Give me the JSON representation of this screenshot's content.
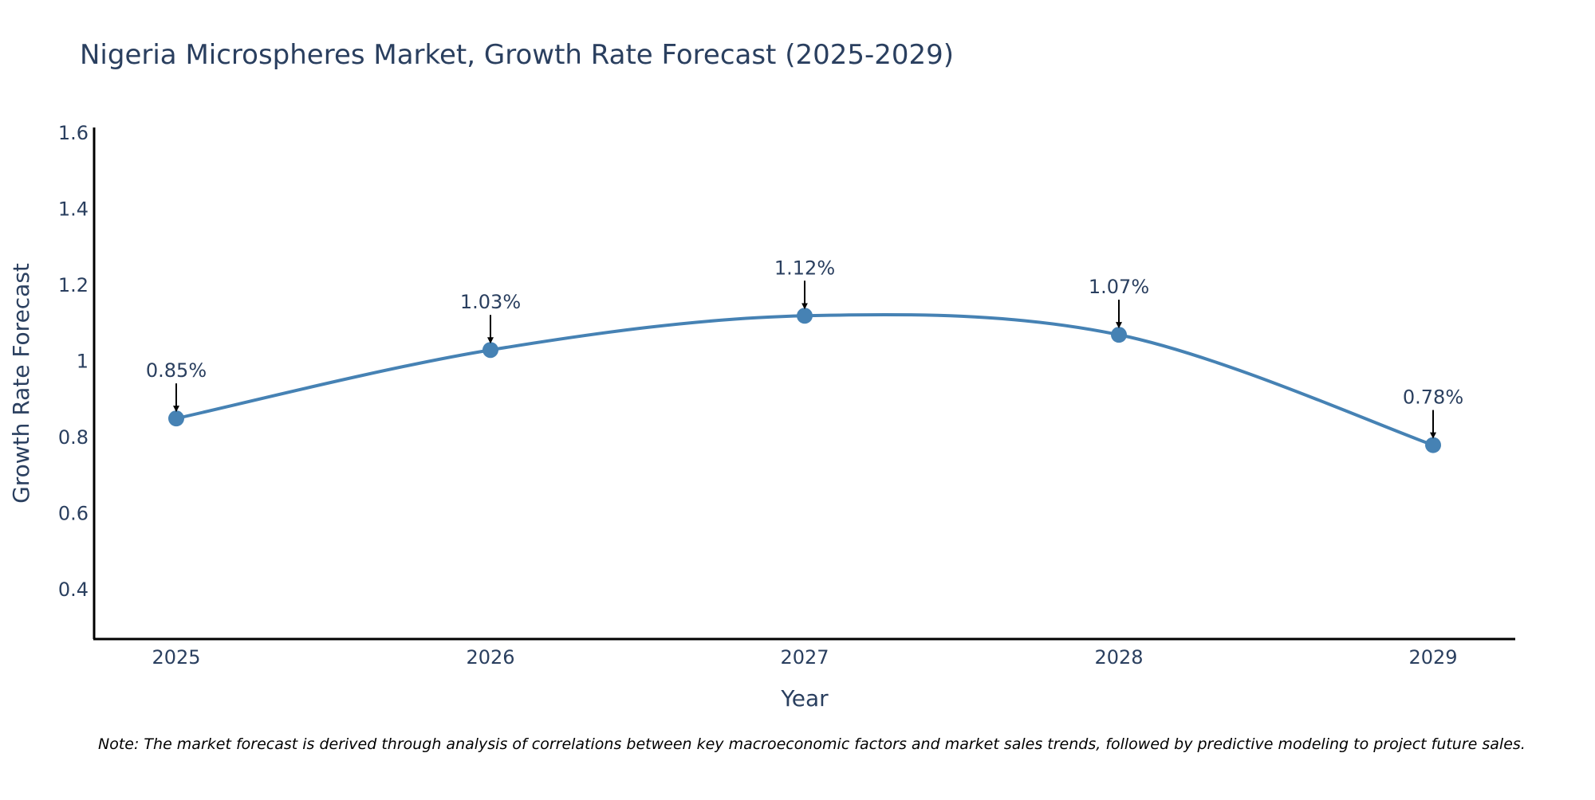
{
  "chart_data": {
    "type": "line",
    "title": "Nigeria Microspheres Market, Growth Rate Forecast (2025-2029)",
    "xlabel": "Year",
    "ylabel": "Growth Rate Forecast",
    "categories": [
      "2025",
      "2026",
      "2027",
      "2028",
      "2029"
    ],
    "series": [
      {
        "name": "Growth Rate Forecast",
        "values": [
          0.85,
          1.03,
          1.12,
          1.07,
          0.78
        ],
        "labels": [
          "0.85%",
          "1.03%",
          "1.12%",
          "1.07%",
          "0.78%"
        ],
        "color": "#4682b4"
      }
    ],
    "ylim": [
      0.27,
      1.615
    ],
    "yticks": [
      0.4,
      0.6,
      0.8,
      1,
      1.2,
      1.4,
      1.6
    ],
    "ytick_labels": [
      "0.4",
      "0.6",
      "0.8",
      "1",
      "1.2",
      "1.4",
      "1.6"
    ],
    "grid": false,
    "line_shape": "spline"
  },
  "note": "Note: The market forecast is derived through analysis of correlations between key macroeconomic factors and market sales trends, followed by predictive modeling to project future sales.",
  "colors": {
    "line": "#4682b4",
    "text": "#2a3f5f",
    "axis": "#000000"
  }
}
